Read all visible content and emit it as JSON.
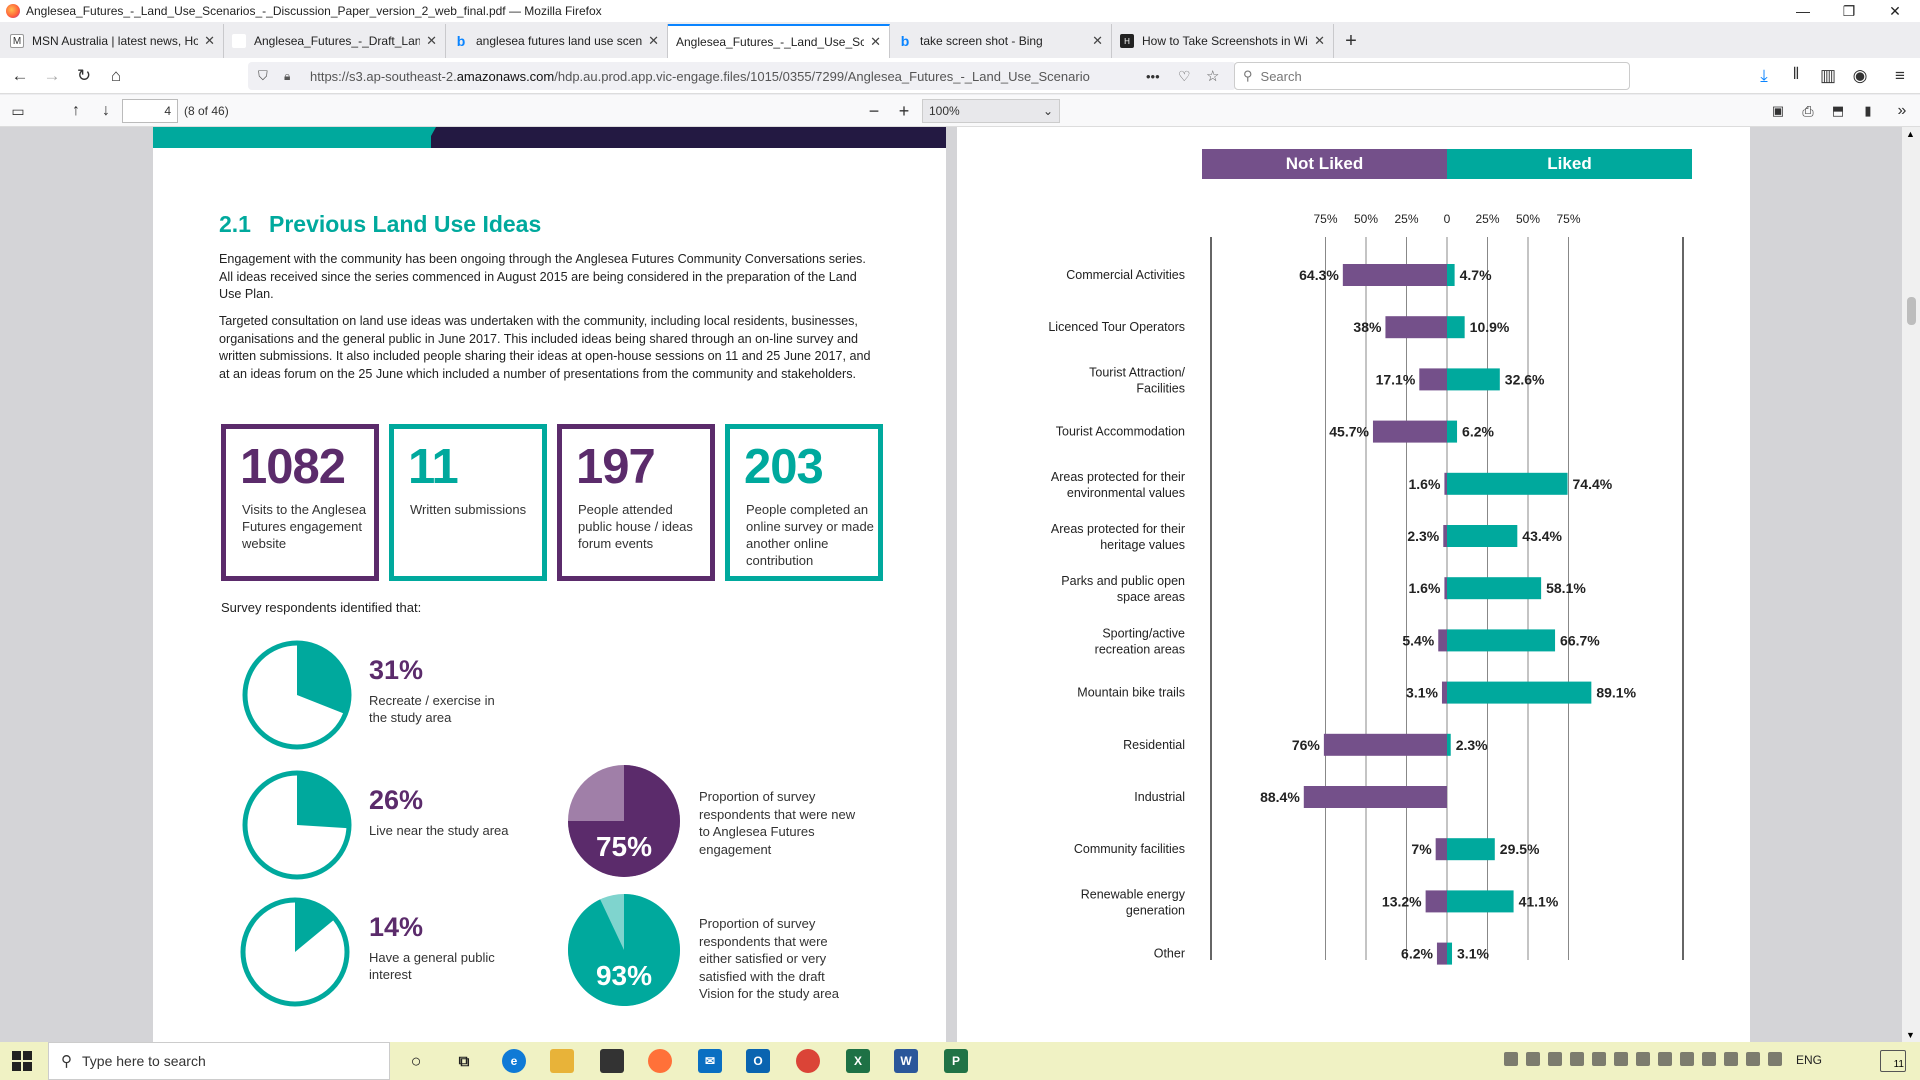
{
  "window": {
    "title": "Anglesea_Futures_-_Land_Use_Scenarios_-_Discussion_Paper_version_2_web_final.pdf — Mozilla Firefox",
    "minimize": "—",
    "maximize": "❐",
    "close": "✕"
  },
  "tabs": [
    {
      "label": "MSN Australia | latest news, Ho",
      "icon": "msn-icon",
      "icon_glyph": "M",
      "icon_color": "#333"
    },
    {
      "label": "Anglesea_Futures_-_Draft_Land_Us",
      "icon": "pdf-icon",
      "icon_glyph": "",
      "icon_color": "#fff"
    },
    {
      "label": "anglesea futures land use scena",
      "icon": "bing-icon",
      "icon_glyph": "b",
      "icon_color": "#0a84ff"
    },
    {
      "label": "Anglesea_Futures_-_Land_Use_Scen",
      "icon": "pdf-icon",
      "icon_glyph": "",
      "icon_color": "#fff"
    },
    {
      "label": "take screen shot - Bing",
      "icon": "bing-icon",
      "icon_glyph": "b",
      "icon_color": "#0a84ff"
    },
    {
      "label": "How to Take Screenshots in Win",
      "icon": "htg-icon",
      "icon_glyph": "H",
      "icon_color": "#222"
    }
  ],
  "nav": {
    "url_prefix": "https://s3.ap-southeast-2.",
    "url_domain": "amazonaws.com",
    "url_rest": "/hdp.au.prod.app.vic-engage.files/1015/0355/7299/Anglesea_Futures_-_Land_Use_Scenario",
    "more": "•••",
    "search_placeholder": "Search"
  },
  "pdf_toolbar": {
    "page_number": "4",
    "page_count": "(8 of 46)",
    "zoom": "100%"
  },
  "page1": {
    "section_number": "2.1",
    "section_title": "Previous Land Use Ideas",
    "para1": "Engagement with the community has been ongoing through the Anglesea Futures Community Conversations series. All ideas received since the series commenced in August 2015 are being considered in the preparation of the Land Use Plan.",
    "para2": "Targeted consultation on land use ideas was undertaken with the community, including local residents, businesses, organisations and the general public in June 2017. This included ideas being shared through an on-line survey and written submissions. It also included people sharing their ideas at open-house sessions on 11 and 25 June 2017, and at an ideas forum on the 25 June which included a number of presentations from the community and stakeholders.",
    "stats": [
      {
        "number": "1082",
        "label": "Visits to the Anglesea Futures engagement website",
        "style": "purple"
      },
      {
        "number": "11",
        "label": "Written submissions",
        "style": "teal"
      },
      {
        "number": "197",
        "label": "People attended public house / ideas forum events",
        "style": "purple"
      },
      {
        "number": "203",
        "label": "People completed an online survey or made another online contribution",
        "style": "teal"
      }
    ],
    "survey_intro": "Survey respondents identified that:",
    "pies": [
      {
        "percent": "31%",
        "value": 31,
        "label": "Recreate / exercise in the study area"
      },
      {
        "percent": "26%",
        "value": 26,
        "label": "Live near the study area"
      },
      {
        "percent": "14%",
        "value": 14,
        "label": "Have a general public interest"
      }
    ],
    "filled_pies": [
      {
        "percent": "75%",
        "value": 75,
        "label": "Proportion of survey respondents that were new to Anglesea Futures engagement",
        "color": "#5b2b6b",
        "light": "#a07fa8"
      },
      {
        "percent": "93%",
        "value": 93,
        "label": "Proportion of survey respondents that were either satisfied or very satisfied with the draft Vision for the study area",
        "color": "#00a99d",
        "light": "#7fd4ce"
      }
    ]
  },
  "colors": {
    "purple": "#74508a",
    "teal": "#00a99d",
    "dark_purple": "#5b2b6b"
  },
  "chart_data": {
    "type": "bar",
    "orientation": "diverging-horizontal",
    "legend": [
      "Not Liked",
      "Liked"
    ],
    "x_ticks_left": [
      "75%",
      "50%",
      "25%"
    ],
    "x_zero": "0",
    "x_ticks_right": [
      "25%",
      "50%",
      "75%"
    ],
    "xlim": [
      -100,
      100
    ],
    "grid": true,
    "categories": [
      "Commercial Activities",
      "Licenced Tour Operators",
      "Tourist Attraction/ Facilities",
      "Tourist Accommodation",
      "Areas protected for their environmental values",
      "Areas protected for their heritage values",
      "Parks and public open space areas",
      "Sporting/active recreation areas",
      "Mountain bike trails",
      "Residential",
      "Industrial",
      "Community facilities",
      "Renewable energy generation",
      "Other"
    ],
    "series": [
      {
        "name": "Not Liked",
        "values": [
          64.3,
          38,
          17.1,
          45.7,
          1.6,
          2.3,
          1.6,
          5.4,
          3.1,
          76,
          88.4,
          7,
          13.2,
          6.2
        ],
        "labels": [
          "64.3%",
          "38%",
          "17.1%",
          "45.7%",
          "1.6%",
          "2.3%",
          "1.6%",
          "5.4%",
          "3.1%",
          "76%",
          "88.4%",
          "7%",
          "13.2%",
          "6.2%"
        ]
      },
      {
        "name": "Liked",
        "values": [
          4.7,
          10.9,
          32.6,
          6.2,
          74.4,
          43.4,
          58.1,
          66.7,
          89.1,
          2.3,
          0,
          29.5,
          41.1,
          3.1
        ],
        "labels": [
          "4.7%",
          "10.9%",
          "32.6%",
          "6.2%",
          "74.4%",
          "43.4%",
          "58.1%",
          "66.7%",
          "89.1%",
          "2.3%",
          "",
          "29.5%",
          "41.1%",
          "3.1%"
        ]
      }
    ]
  },
  "taskbar": {
    "search_placeholder": "Type here to search",
    "lang": "ENG",
    "notif_count": "11"
  }
}
